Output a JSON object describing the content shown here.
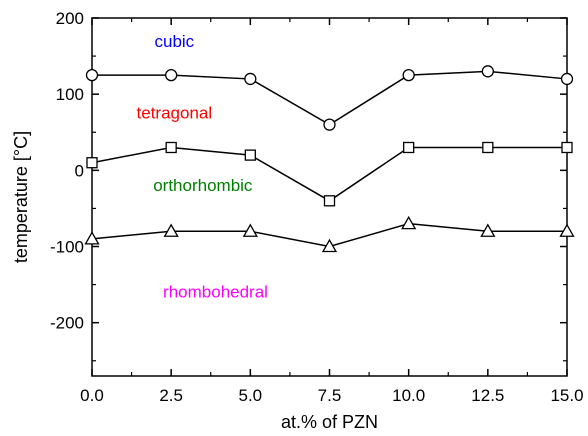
{
  "chart_data": {
    "type": "line",
    "xlabel": "at.% of PZN",
    "ylabel": "temperature [°C]",
    "xlim": [
      0,
      15
    ],
    "ylim": [
      -270,
      200
    ],
    "x_ticks": [
      0,
      2.5,
      5,
      7.5,
      10,
      12.5,
      15
    ],
    "x_tick_labels": [
      "0.0",
      "2.5",
      "5.0",
      "7.5",
      "10.0",
      "12.5",
      "15.0"
    ],
    "y_ticks": [
      -200,
      -100,
      0,
      100,
      200
    ],
    "y_tick_labels": [
      "-200",
      "-100",
      "0",
      "100",
      "200"
    ],
    "grid": false,
    "x": [
      0,
      2.5,
      5,
      7.5,
      10,
      12.5,
      15
    ],
    "series": [
      {
        "marker": "circle",
        "color": "#000000",
        "values": [
          125,
          125,
          120,
          60,
          125,
          130,
          120
        ]
      },
      {
        "marker": "square",
        "color": "#000000",
        "values": [
          10,
          30,
          20,
          -40,
          30,
          30,
          30
        ]
      },
      {
        "marker": "triangle",
        "color": "#000000",
        "values": [
          -90,
          -80,
          -80,
          -100,
          -70,
          -80,
          -80
        ]
      }
    ],
    "annotations": [
      {
        "text": "cubic",
        "x": 2.6,
        "y": 162,
        "color": "#0000ff"
      },
      {
        "text": "tetragonal",
        "x": 2.6,
        "y": 68,
        "color": "#ff0000"
      },
      {
        "text": "orthorhombic",
        "x": 3.5,
        "y": -27,
        "color": "#008000"
      },
      {
        "text": "rhombohedral",
        "x": 3.9,
        "y": -167,
        "color": "#ff00ff"
      }
    ]
  }
}
